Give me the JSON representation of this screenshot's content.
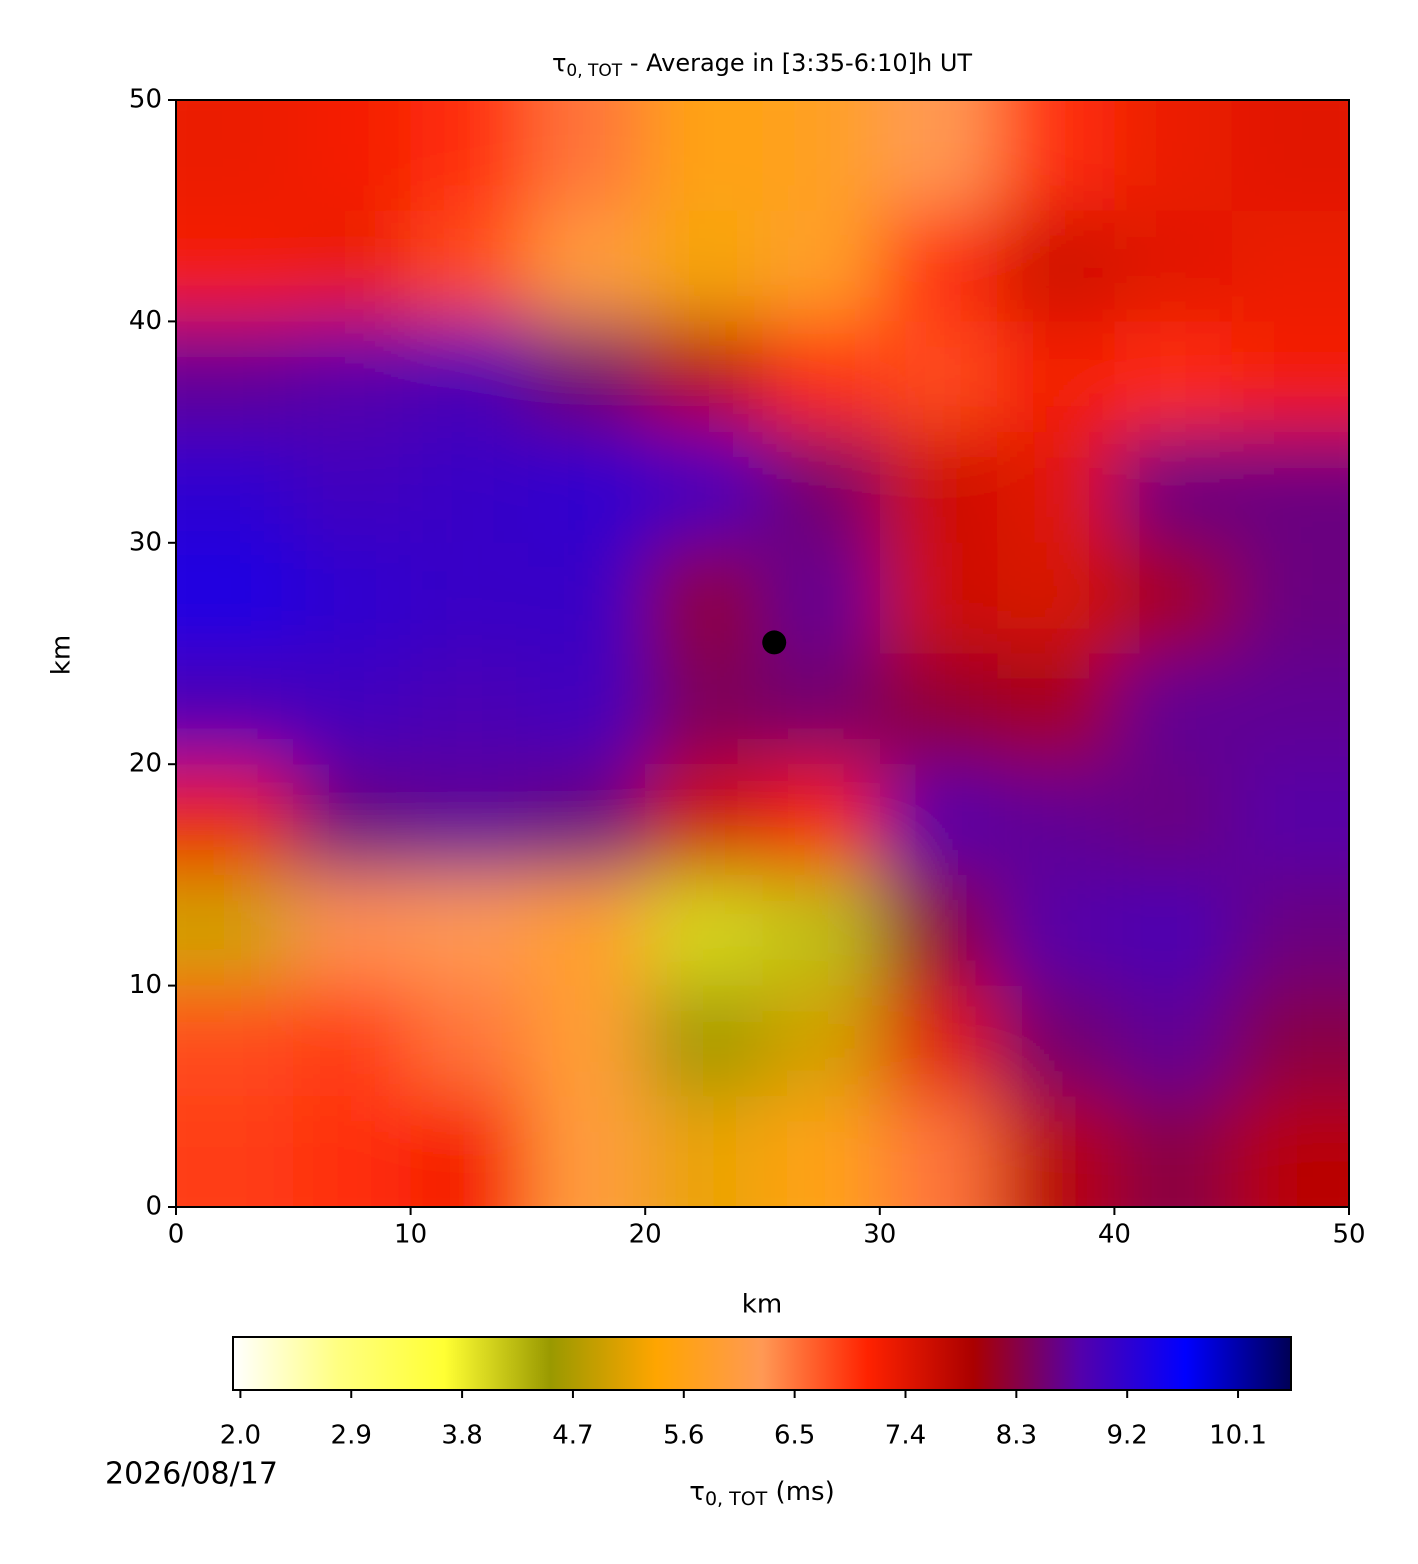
{
  "chart_data": {
    "type": "heatmap",
    "title": {
      "symbol": "τ",
      "subscript": "0, TOT",
      "text": " - Average in [3:35-6:10]h UT"
    },
    "x_label": "km",
    "y_label": "km",
    "xlim": [
      0,
      50
    ],
    "ylim": [
      0,
      50
    ],
    "xticks": [
      0,
      10,
      20,
      30,
      40,
      50
    ],
    "yticks": [
      0,
      10,
      20,
      30,
      40,
      50
    ],
    "y": [
      47.5,
      42.5,
      37.5,
      32.5,
      27.5,
      22.5,
      17.5,
      12.5,
      7.5,
      2.5
    ],
    "x": [
      2.5,
      7.5,
      12.5,
      17.5,
      22.5,
      27.5,
      32.5,
      37.5,
      42.5,
      47.5
    ],
    "z": [
      [
        7.3,
        7.2,
        7.0,
        6.5,
        5.5,
        5.7,
        6.2,
        7.0,
        7.3,
        7.4
      ],
      [
        7.2,
        7.3,
        6.8,
        6.0,
        5.3,
        5.8,
        7.0,
        7.6,
        7.4,
        7.3
      ],
      [
        8.7,
        8.8,
        8.9,
        8.5,
        7.8,
        7.0,
        6.8,
        7.2,
        7.0,
        7.2
      ],
      [
        9.2,
        9.0,
        9.1,
        9.2,
        9.0,
        8.5,
        7.6,
        7.4,
        8.6,
        8.6
      ],
      [
        9.4,
        9.2,
        9.1,
        9.1,
        8.2,
        8.7,
        7.6,
        7.5,
        8.0,
        8.6
      ],
      [
        8.9,
        9.0,
        8.9,
        9.0,
        8.4,
        8.5,
        8.2,
        8.0,
        8.7,
        8.7
      ],
      [
        7.3,
        8.6,
        8.7,
        8.6,
        7.6,
        7.2,
        8.8,
        8.7,
        8.6,
        8.8
      ],
      [
        5.0,
        6.3,
        6.2,
        5.8,
        4.0,
        4.2,
        8.2,
        8.8,
        8.9,
        8.6
      ],
      [
        6.8,
        6.9,
        6.5,
        5.9,
        4.6,
        5.0,
        7.4,
        8.5,
        8.7,
        8.3
      ],
      [
        6.9,
        7.0,
        7.2,
        6.0,
        5.2,
        5.6,
        6.5,
        7.8,
        8.3,
        7.8
      ]
    ],
    "point": {
      "x": 25.5,
      "y": 25.5
    },
    "colormap": [
      "#ffffff",
      "#ffff80",
      "#ffff33",
      "#999900",
      "#ffa500",
      "#ff9955",
      "#ff2200",
      "#aa0000",
      "#5500aa",
      "#0000ff",
      "#000055"
    ],
    "clim": [
      1.94,
      10.53
    ],
    "colorbar_ticks": [
      {
        "value": 2.0,
        "label": "2.0"
      },
      2.9,
      3.8,
      4.7,
      5.6,
      6.5,
      7.4,
      8.3,
      9.2,
      10.1
    ],
    "colorbar_label": {
      "symbol": "τ",
      "subscript": "0, TOT",
      "text": " (ms)"
    },
    "date": "2026/08/17"
  }
}
